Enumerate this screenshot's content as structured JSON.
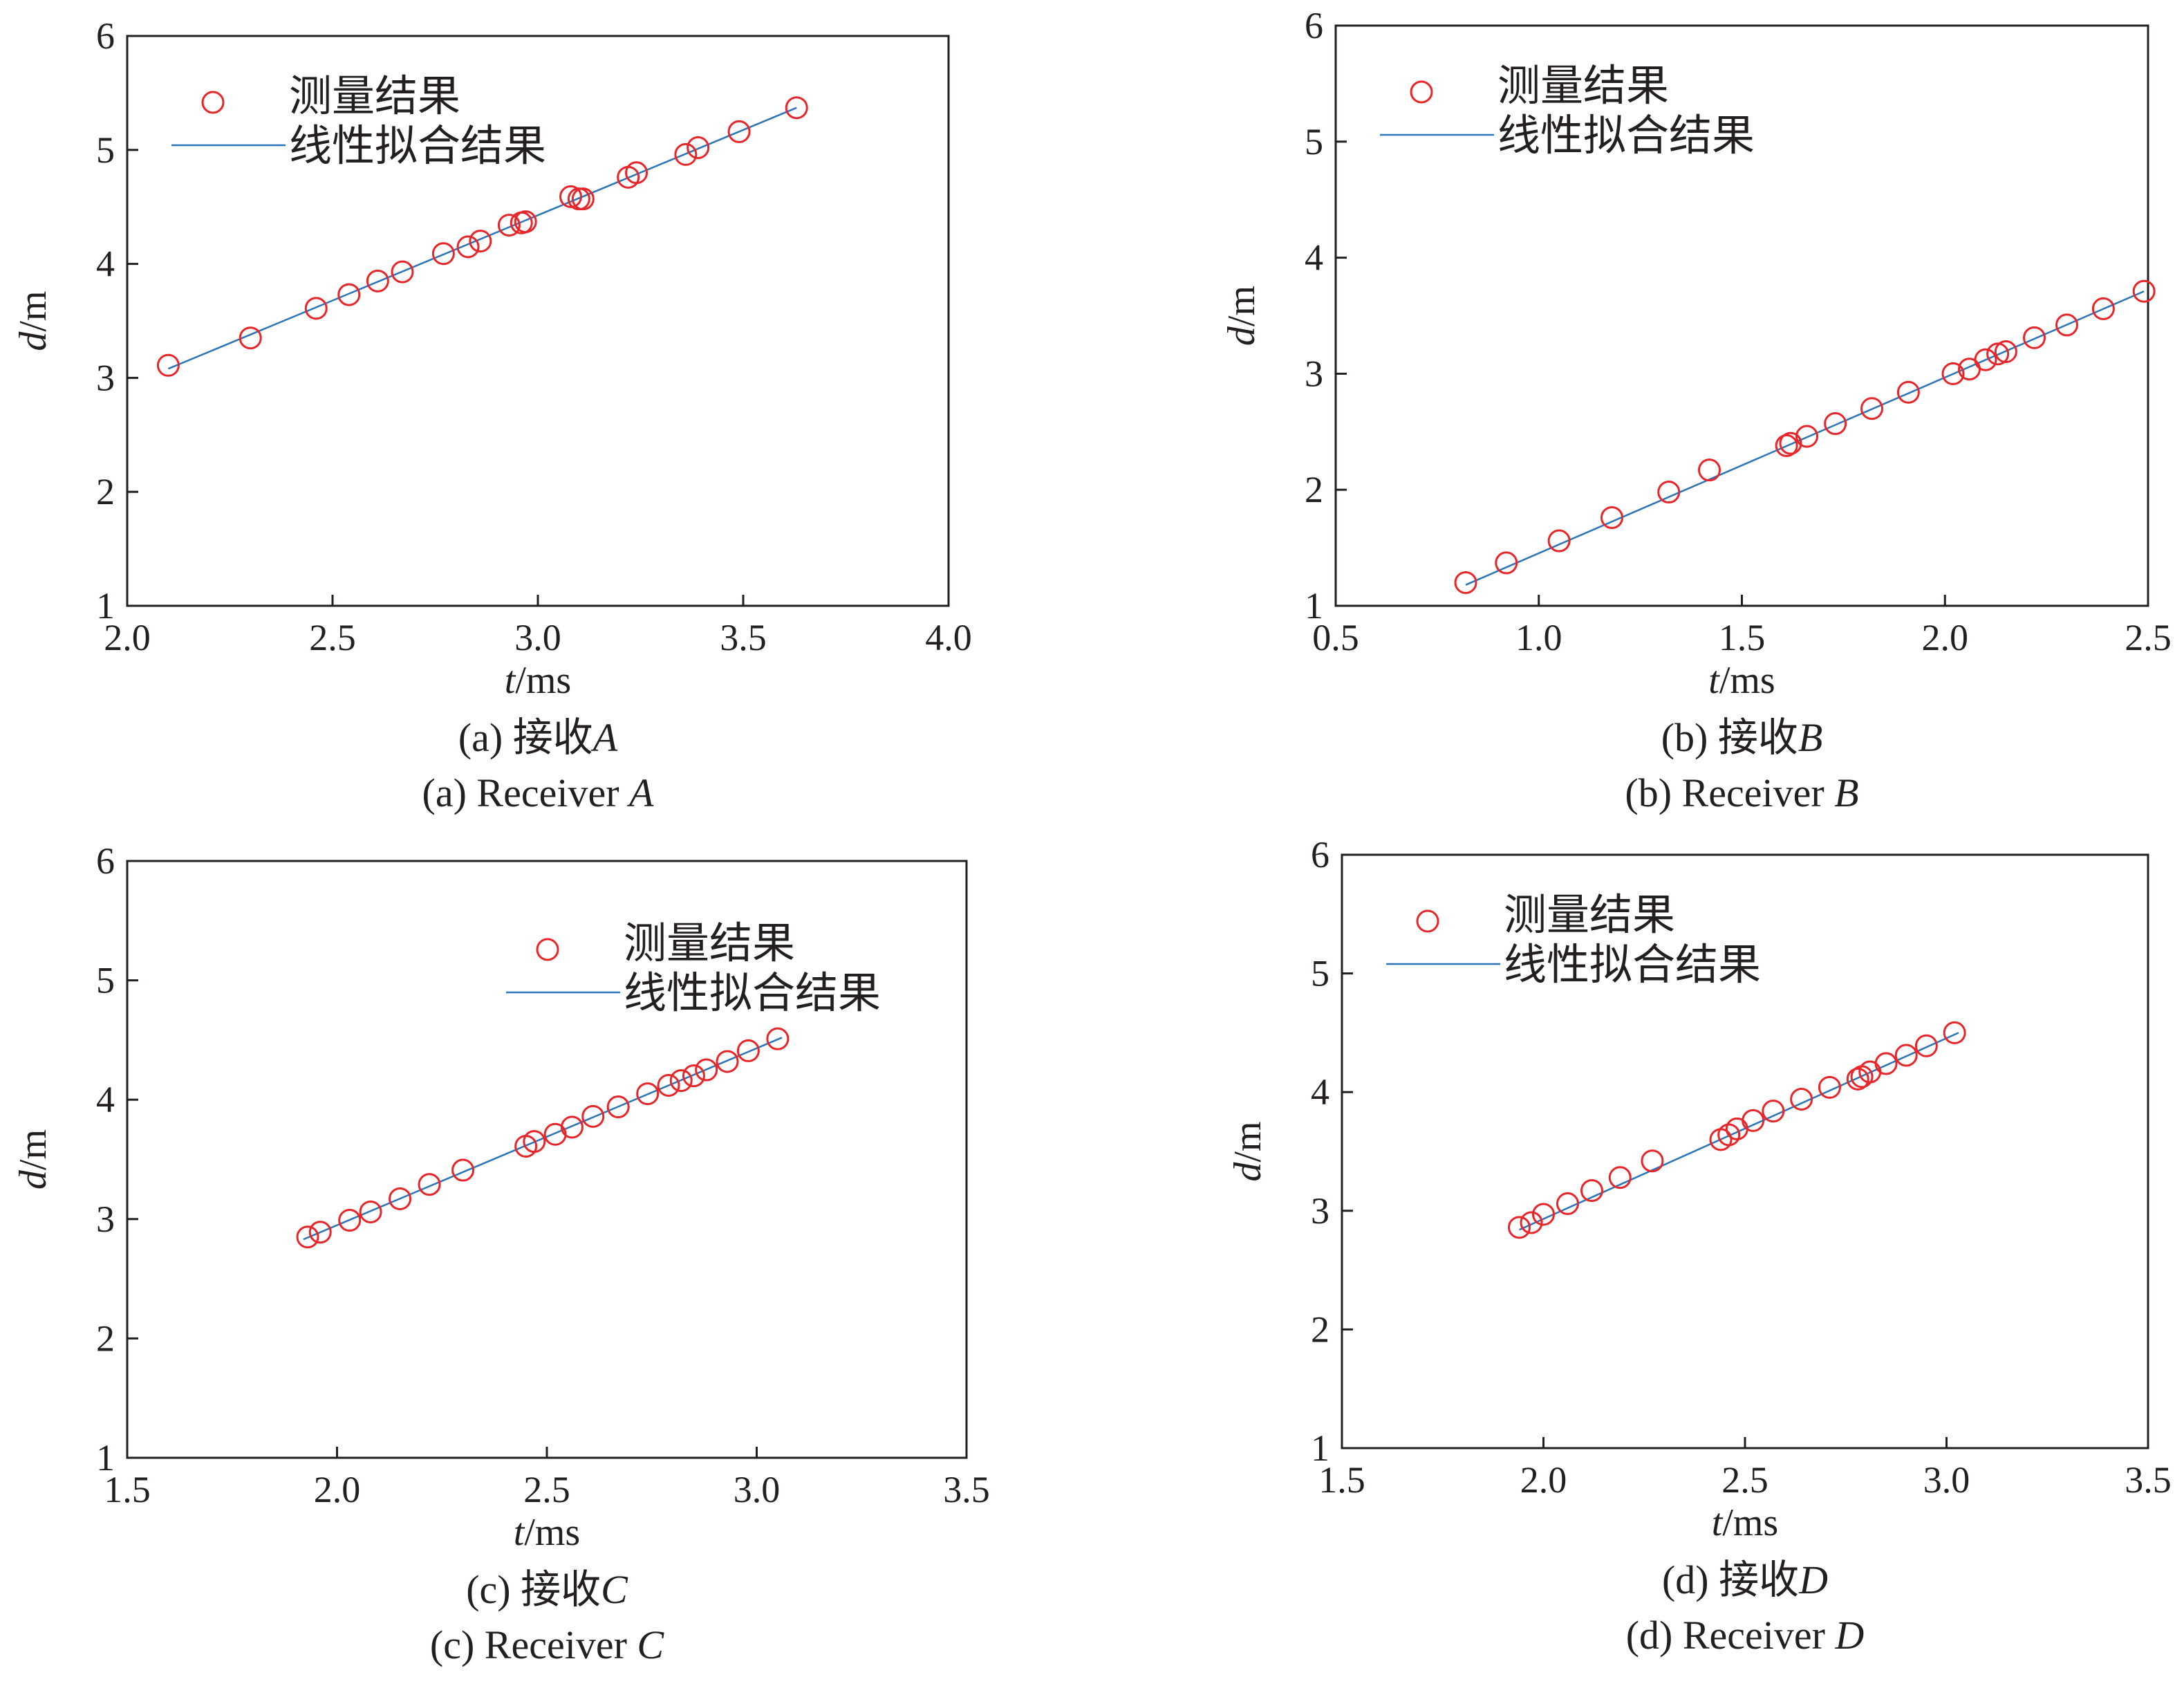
{
  "figure": {
    "legend": {
      "points_label": "测量结果",
      "line_label": "线性拟合结果"
    },
    "colors": {
      "points": "#e8262a",
      "fit_line": "#2b74b8",
      "axes": "#231f20"
    }
  },
  "chart_data": [
    {
      "type": "scatter",
      "xlabel_var": "t",
      "xlabel_unit": "/ms",
      "ylabel_var": "d",
      "ylabel_unit": "/m",
      "xlim": [
        2.0,
        4.0
      ],
      "ylim": [
        1,
        6
      ],
      "xticks": [
        "2.0",
        "2.5",
        "3.0",
        "3.5",
        "4.0"
      ],
      "yticks": [
        "1",
        "2",
        "3",
        "4",
        "5",
        "6"
      ],
      "legend_position": "top-left",
      "caption_zh_prefix": "(a) 接收",
      "caption_zh_var": "A",
      "caption_en_prefix": "(a) Receiver ",
      "caption_en_var": "A",
      "fit": {
        "x": [
          2.1,
          3.63
        ],
        "y": [
          3.08,
          5.37
        ]
      },
      "series": [
        {
          "name": "测量结果",
          "x": [
            2.1,
            2.3,
            2.46,
            2.54,
            2.61,
            2.67,
            2.77,
            2.83,
            2.86,
            2.93,
            2.96,
            2.97,
            3.08,
            3.1,
            3.11,
            3.22,
            3.24,
            3.36,
            3.39,
            3.49,
            3.63
          ],
          "y": [
            3.11,
            3.35,
            3.61,
            3.73,
            3.85,
            3.93,
            4.09,
            4.15,
            4.2,
            4.34,
            4.36,
            4.37,
            4.59,
            4.57,
            4.57,
            4.76,
            4.8,
            4.96,
            5.02,
            5.16,
            5.37
          ]
        }
      ]
    },
    {
      "type": "scatter",
      "xlabel_var": "t",
      "xlabel_unit": "/ms",
      "ylabel_var": "d",
      "ylabel_unit": "/m",
      "xlim": [
        0.5,
        2.5
      ],
      "ylim": [
        1,
        6
      ],
      "xticks": [
        "0.5",
        "1.0",
        "1.5",
        "2.0",
        "2.5"
      ],
      "yticks": [
        "1",
        "2",
        "3",
        "4",
        "5",
        "6"
      ],
      "legend_position": "top-left",
      "caption_zh_prefix": "(b) 接收",
      "caption_zh_var": "B",
      "caption_en_prefix": "(b) Receiver ",
      "caption_en_var": "B",
      "fit": {
        "x": [
          0.82,
          2.49
        ],
        "y": [
          1.18,
          3.71
        ]
      },
      "series": [
        {
          "name": "测量结果",
          "x": [
            0.82,
            0.92,
            1.05,
            1.18,
            1.32,
            1.42,
            1.61,
            1.62,
            1.66,
            1.73,
            1.82,
            1.91,
            2.02,
            2.06,
            2.1,
            2.13,
            2.15,
            2.22,
            2.3,
            2.39,
            2.49
          ],
          "y": [
            1.2,
            1.37,
            1.56,
            1.76,
            1.98,
            2.17,
            2.38,
            2.4,
            2.46,
            2.57,
            2.7,
            2.84,
            3.0,
            3.04,
            3.12,
            3.17,
            3.19,
            3.31,
            3.42,
            3.56,
            3.71
          ]
        }
      ]
    },
    {
      "type": "scatter",
      "xlabel_var": "t",
      "xlabel_unit": "/ms",
      "ylabel_var": "d",
      "ylabel_unit": "/m",
      "xlim": [
        1.5,
        3.5
      ],
      "ylim": [
        1,
        6
      ],
      "xticks": [
        "1.5",
        "2.0",
        "2.5",
        "3.0",
        "3.5"
      ],
      "yticks": [
        "1",
        "2",
        "3",
        "4",
        "5",
        "6"
      ],
      "legend_position": "top-right",
      "caption_zh_prefix": "(c) 接收",
      "caption_zh_var": "C",
      "caption_en_prefix": "(c) Receiver ",
      "caption_en_var": "C",
      "fit": {
        "x": [
          1.92,
          3.06
        ],
        "y": [
          2.83,
          4.52
        ]
      },
      "series": [
        {
          "name": "测量结果",
          "x": [
            1.93,
            1.96,
            2.03,
            2.08,
            2.15,
            2.22,
            2.3,
            2.45,
            2.47,
            2.52,
            2.56,
            2.61,
            2.67,
            2.74,
            2.79,
            2.82,
            2.85,
            2.88,
            2.93,
            2.98,
            3.05
          ],
          "y": [
            2.85,
            2.89,
            2.99,
            3.06,
            3.17,
            3.29,
            3.41,
            3.61,
            3.65,
            3.71,
            3.77,
            3.86,
            3.94,
            4.05,
            4.12,
            4.16,
            4.2,
            4.25,
            4.32,
            4.41,
            4.51
          ]
        }
      ]
    },
    {
      "type": "scatter",
      "xlabel_var": "t",
      "xlabel_unit": "/ms",
      "ylabel_var": "d",
      "ylabel_unit": "/m",
      "xlim": [
        1.5,
        3.5
      ],
      "ylim": [
        1,
        6
      ],
      "xticks": [
        "1.5",
        "2.0",
        "2.5",
        "3.0",
        "3.5"
      ],
      "yticks": [
        "1",
        "2",
        "3",
        "4",
        "5",
        "6"
      ],
      "legend_position": "top-left",
      "caption_zh_prefix": "(d) 接收",
      "caption_zh_var": "D",
      "caption_en_prefix": "(d) Receiver ",
      "caption_en_var": "D",
      "fit": {
        "x": [
          1.94,
          3.03
        ],
        "y": [
          2.84,
          4.5
        ]
      },
      "series": [
        {
          "name": "测量结果",
          "x": [
            1.94,
            1.97,
            2.0,
            2.06,
            2.12,
            2.19,
            2.27,
            2.44,
            2.46,
            2.48,
            2.52,
            2.57,
            2.64,
            2.71,
            2.78,
            2.79,
            2.81,
            2.85,
            2.9,
            2.95,
            3.02
          ],
          "y": [
            2.86,
            2.9,
            2.97,
            3.06,
            3.17,
            3.28,
            3.42,
            3.6,
            3.64,
            3.69,
            3.76,
            3.84,
            3.94,
            4.04,
            4.11,
            4.13,
            4.17,
            4.24,
            4.31,
            4.39,
            4.5
          ]
        }
      ]
    }
  ]
}
